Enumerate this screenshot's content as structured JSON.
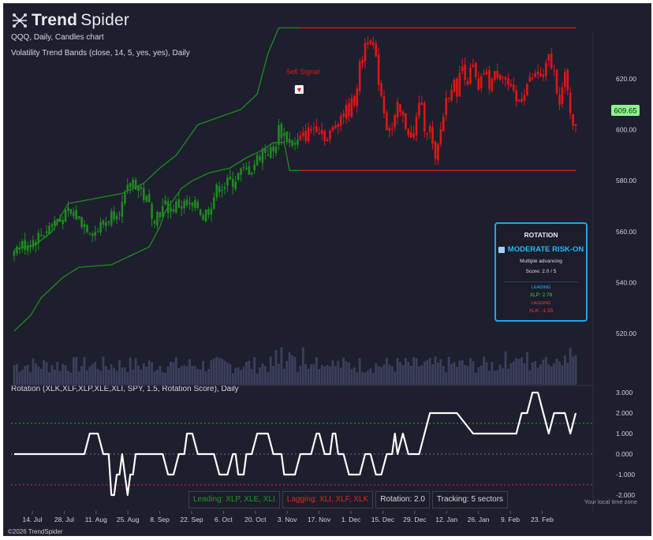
{
  "brand": {
    "name_bold": "Trend",
    "name_light": "Spider"
  },
  "header": {
    "line1": "QQQ, Daily, Candles chart",
    "line2": "Volatility Trend Bands (close, 14, 5, yes, yes), Daily",
    "indicator_line": "Rotation (XLK,XLF,XLP,XLE,XLI, SPY, 1.5, Rotation Score), Daily"
  },
  "copyright": "©2026 TrendSpider",
  "local_tz": "Your local time zone",
  "colors": {
    "bull": "#1f8a1f",
    "bear": "#e01515",
    "band_green": "#1c8c1c",
    "band_red": "#dd1b1b",
    "accent": "#1ea6e6",
    "price_tag": "#8ef08e"
  },
  "signal": {
    "label": "Sell Signal",
    "marker": "▼"
  },
  "last_price": "609.65",
  "rotation_panel": {
    "title": "ROTATION",
    "icon": "chart-icon",
    "mode": "MODERATE RISK-ON",
    "desc": "Multiple advancing",
    "score": "Score: 2.0 / 5",
    "leading_label": "LEADING",
    "leading_value": "XLP: 2.78",
    "lagging_label": "LAGGING",
    "lagging_value": "XLK: -1.55"
  },
  "legend": {
    "leading": "Leading: XLP, XLE, XLI",
    "lagging": "Lagging: XLI, XLF, XLK",
    "rotation": "Rotation: 2.0",
    "tracking": "Tracking: 5 sectors"
  },
  "chart_data": [
    {
      "type": "candlestick",
      "title": "QQQ, Daily, Candles chart",
      "y_ticks": [
        "620.00",
        "600.00",
        "580.00",
        "560.00",
        "540.00",
        "520.00"
      ],
      "ylim": [
        515,
        650
      ],
      "x_ticks": [
        "14. Jul",
        "28. Jul",
        "11. Aug",
        "25. Aug",
        "8. Sep",
        "22. Sep",
        "6. Oct",
        "20. Oct",
        "3. Nov",
        "17. Nov",
        "1. Dec",
        "15. Dec",
        "29. Dec",
        "12. Jan",
        "26. Jan",
        "9. Feb",
        "23. Feb"
      ],
      "close_path": [
        [
          0,
          553
        ],
        [
          4,
          555
        ],
        [
          8,
          557
        ],
        [
          12,
          561
        ],
        [
          16,
          565
        ],
        [
          20,
          566
        ],
        [
          22,
          567
        ],
        [
          26,
          563
        ],
        [
          30,
          560
        ],
        [
          34,
          564
        ],
        [
          38,
          569
        ],
        [
          40,
          570
        ],
        [
          42,
          576
        ],
        [
          44,
          580
        ],
        [
          46,
          578
        ],
        [
          50,
          570
        ],
        [
          52,
          566
        ],
        [
          56,
          570
        ],
        [
          58,
          569
        ],
        [
          62,
          571
        ],
        [
          66,
          569
        ],
        [
          68,
          570
        ],
        [
          70,
          566
        ],
        [
          72,
          569
        ],
        [
          74,
          574
        ],
        [
          76,
          578
        ],
        [
          80,
          579
        ],
        [
          84,
          583
        ],
        [
          88,
          585
        ],
        [
          92,
          592
        ],
        [
          96,
          591
        ],
        [
          98,
          600
        ],
        [
          100,
          598
        ],
        [
          102,
          596
        ],
        [
          104,
          594
        ],
        [
          108,
          598
        ],
        [
          112,
          602
        ],
        [
          114,
          600
        ],
        [
          116,
          596
        ],
        [
          118,
          600
        ],
        [
          120,
          605
        ],
        [
          124,
          608
        ],
        [
          126,
          612
        ],
        [
          128,
          624
        ],
        [
          130,
          634
        ],
        [
          132,
          638
        ],
        [
          134,
          626
        ],
        [
          136,
          614
        ],
        [
          138,
          602
        ],
        [
          140,
          600
        ],
        [
          142,
          608
        ],
        [
          144,
          604
        ],
        [
          146,
          600
        ],
        [
          148,
          596
        ],
        [
          150,
          612
        ],
        [
          152,
          602
        ],
        [
          154,
          600
        ],
        [
          156,
          586
        ],
        [
          158,
          600
        ],
        [
          160,
          612
        ],
        [
          162,
          618
        ],
        [
          164,
          616
        ],
        [
          166,
          625
        ],
        [
          168,
          620
        ],
        [
          170,
          624
        ],
        [
          172,
          614
        ],
        [
          174,
          623
        ],
        [
          176,
          618
        ],
        [
          180,
          624
        ],
        [
          184,
          615
        ],
        [
          186,
          610
        ],
        [
          190,
          618
        ],
        [
          194,
          622
        ],
        [
          196,
          620
        ],
        [
          198,
          628
        ],
        [
          200,
          622
        ],
        [
          202,
          612
        ],
        [
          204,
          620
        ],
        [
          206,
          608
        ],
        [
          208,
          600
        ]
      ],
      "band_path": [
        [
          0,
          521
        ],
        [
          6,
          527
        ],
        [
          10,
          534
        ],
        [
          14,
          538
        ],
        [
          18,
          542
        ],
        [
          24,
          546
        ],
        [
          36,
          547
        ],
        [
          46,
          552
        ],
        [
          50,
          554
        ],
        [
          54,
          562
        ],
        [
          56,
          568
        ],
        [
          62,
          577
        ],
        [
          66,
          580
        ],
        [
          72,
          583
        ],
        [
          80,
          585
        ],
        [
          86,
          589
        ],
        [
          92,
          592
        ],
        [
          96,
          595
        ],
        [
          100,
          595
        ],
        [
          102,
          584
        ],
        [
          106,
          584
        ],
        [
          150,
          584
        ],
        [
          155,
          584
        ],
        [
          160,
          584
        ],
        [
          200,
          584
        ],
        [
          208,
          584
        ]
      ],
      "upper_path": [
        [
          0,
          553
        ],
        [
          8,
          555
        ],
        [
          14,
          560
        ],
        [
          20,
          571
        ],
        [
          30,
          573
        ],
        [
          40,
          575
        ],
        [
          48,
          579
        ],
        [
          54,
          585
        ],
        [
          60,
          590
        ],
        [
          68,
          602
        ],
        [
          76,
          605
        ],
        [
          84,
          608
        ],
        [
          90,
          614
        ],
        [
          94,
          630
        ],
        [
          98,
          640
        ],
        [
          102,
          640
        ],
        [
          106,
          640
        ],
        [
          150,
          640
        ],
        [
          208,
          640
        ]
      ],
      "signal_bar": 106
    },
    {
      "type": "line",
      "title": "Rotation (XLK,XLF,XLP,XLE,XLI, SPY, 1.5, Rotation Score), Daily",
      "y_ticks": [
        "3.000",
        "2.000",
        "1.000",
        "0.000",
        "-1.000",
        "-2.000"
      ],
      "ylim": [
        -2.4,
        3.1
      ],
      "upper_threshold": 1.5,
      "lower_threshold": -1.5,
      "x": [
        0,
        26,
        28,
        31,
        33,
        35,
        36,
        37,
        38,
        39,
        40,
        41,
        42,
        43,
        44,
        45,
        47,
        49,
        55,
        57,
        59,
        61,
        63,
        64,
        66,
        68,
        70,
        74,
        76,
        79,
        81,
        82,
        83,
        84,
        85,
        86,
        88,
        90,
        94,
        96,
        99,
        100,
        104,
        106,
        110,
        112,
        113,
        115,
        117,
        118,
        119,
        120,
        122,
        124,
        128,
        130,
        132,
        134,
        136,
        138,
        140,
        141,
        142,
        144,
        146,
        150,
        152,
        154,
        157,
        159,
        160,
        161,
        164,
        170,
        174,
        176,
        180,
        184,
        186,
        188,
        190,
        192,
        194,
        196,
        198,
        200,
        204,
        206,
        208
      ],
      "values": [
        0,
        0,
        1,
        1,
        0,
        0,
        -2,
        -2,
        -1,
        -1,
        0,
        -1,
        -2,
        -1,
        -1,
        0,
        0,
        0,
        0,
        -1,
        -1,
        0,
        0,
        1,
        1,
        0,
        0,
        0,
        -1,
        -1,
        0,
        0,
        -1,
        -1,
        -1,
        0,
        0,
        1,
        1,
        0,
        0,
        -1,
        -1,
        0,
        0,
        1,
        1,
        0,
        0,
        1,
        1,
        0,
        0,
        -1,
        -1,
        0,
        0,
        -1,
        -1,
        0,
        0,
        1,
        0,
        1,
        0,
        0,
        1,
        2,
        2,
        2,
        2,
        2,
        2,
        1,
        1,
        1,
        1,
        1,
        1,
        2,
        2,
        3,
        3,
        2,
        1,
        2,
        2,
        1,
        2
      ]
    }
  ]
}
